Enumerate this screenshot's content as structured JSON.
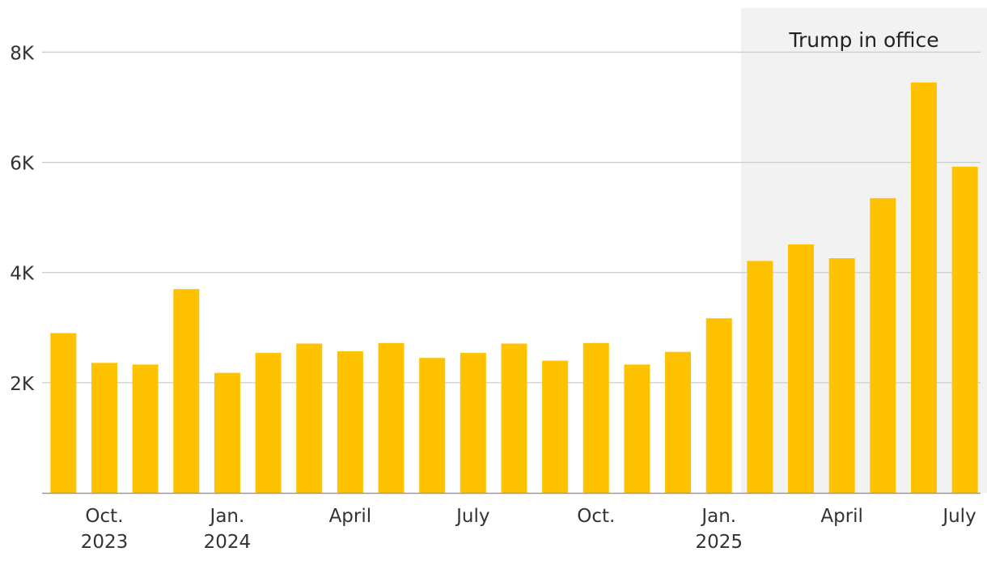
{
  "chart_data": {
    "type": "bar",
    "title": "",
    "xlabel": "",
    "ylabel": "",
    "ylim": [
      0,
      8800
    ],
    "grid": true,
    "categories": [
      "2023-09",
      "2023-10",
      "2023-11",
      "2023-12",
      "2024-01",
      "2024-02",
      "2024-03",
      "2024-04",
      "2024-05",
      "2024-06",
      "2024-07",
      "2024-08",
      "2024-09",
      "2024-10",
      "2024-11",
      "2024-12",
      "2025-01",
      "2025-02",
      "2025-03",
      "2025-04",
      "2025-05",
      "2025-06",
      "2025-07"
    ],
    "values": [
      2900,
      2360,
      2330,
      3700,
      2180,
      2540,
      2710,
      2570,
      2720,
      2450,
      2540,
      2710,
      2400,
      2720,
      2330,
      2560,
      3170,
      4210,
      4510,
      4260,
      5350,
      7450,
      5920
    ],
    "y_ticks": [
      {
        "value": 2000,
        "label": "2K"
      },
      {
        "value": 4000,
        "label": "4K"
      },
      {
        "value": 6000,
        "label": "6K"
      },
      {
        "value": 8000,
        "label": "8K"
      }
    ],
    "x_ticks": [
      {
        "index": 1,
        "lines": [
          "Oct.",
          "2023"
        ]
      },
      {
        "index": 4,
        "lines": [
          "Jan.",
          "2024"
        ]
      },
      {
        "index": 7,
        "lines": [
          "April"
        ]
      },
      {
        "index": 10,
        "lines": [
          "July"
        ]
      },
      {
        "index": 13,
        "lines": [
          "Oct."
        ]
      },
      {
        "index": 16,
        "lines": [
          "Jan.",
          "2025"
        ]
      },
      {
        "index": 19,
        "lines": [
          "April"
        ]
      },
      {
        "index": 22,
        "lines": [
          "July"
        ]
      }
    ],
    "annotation": {
      "label": "Trump in office",
      "from_category": "2025-02",
      "to_category": "2025-07"
    },
    "colors": {
      "bar": "#FFC200",
      "shade": "#F2F2F2",
      "grid": "#CCCCCC",
      "axis": "#999999",
      "text": "#333333"
    }
  }
}
